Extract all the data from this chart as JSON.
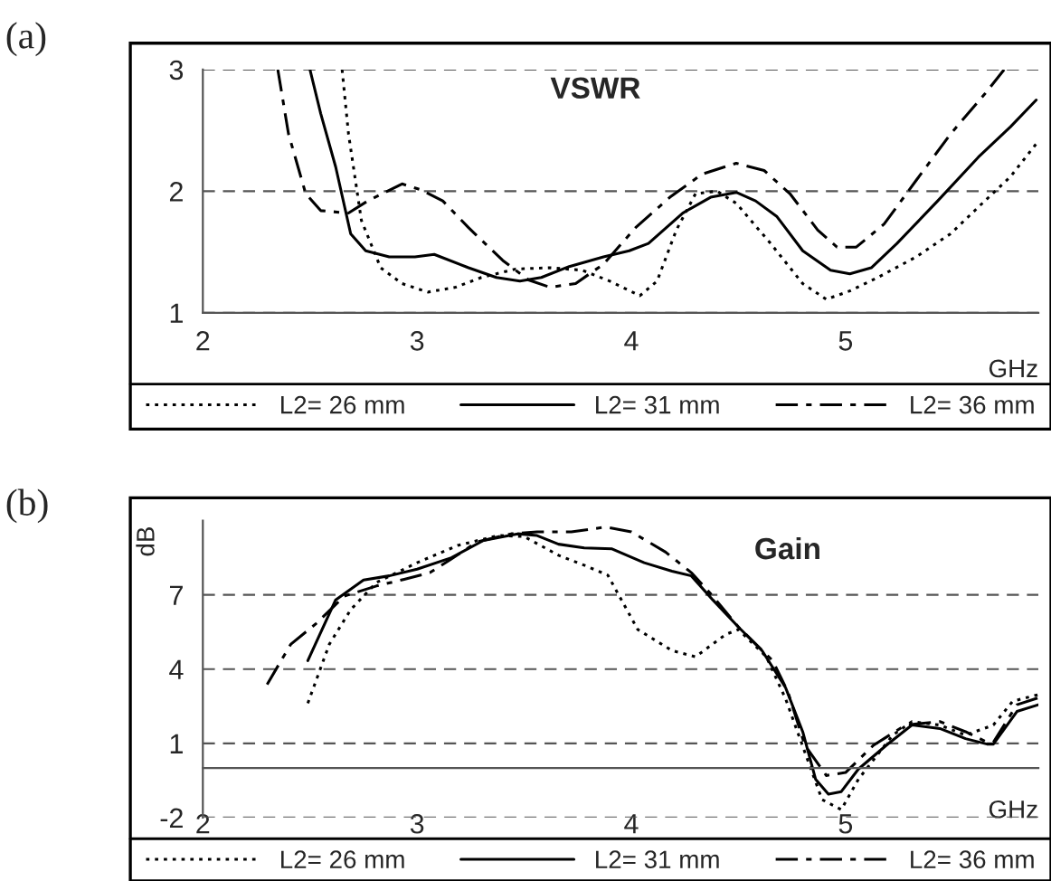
{
  "chart_data": [
    {
      "type": "line",
      "title": "VSWR",
      "xlabel": "GHz",
      "annotations": [
        "(a)"
      ],
      "xlim": [
        2,
        5.9
      ],
      "ylim": [
        1,
        3
      ],
      "xticks": [
        2,
        3,
        4,
        5
      ],
      "yticks": [
        1,
        2,
        3
      ],
      "grid": "y",
      "legend": "bottom",
      "series": [
        {
          "name": "L2= 26 mm",
          "color": "#000000",
          "line_style": "dotted",
          "x": [
            2.65,
            2.68,
            2.74,
            2.83,
            2.93,
            3.05,
            3.18,
            3.3,
            3.46,
            3.62,
            3.77,
            3.9,
            4.04,
            4.12,
            4.21,
            4.3,
            4.4,
            4.49,
            4.65,
            4.8,
            4.91,
            5.02,
            5.15,
            5.33,
            5.49,
            5.65,
            5.77,
            5.89
          ],
          "values": [
            3.0,
            2.47,
            1.76,
            1.37,
            1.24,
            1.17,
            1.21,
            1.29,
            1.36,
            1.37,
            1.35,
            1.26,
            1.14,
            1.26,
            1.68,
            1.98,
            2.0,
            1.9,
            1.57,
            1.24,
            1.11,
            1.18,
            1.29,
            1.46,
            1.65,
            1.92,
            2.12,
            2.39
          ]
        },
        {
          "name": "L2= 31 mm",
          "color": "#000000",
          "line_style": "solid",
          "x": [
            2.5,
            2.55,
            2.62,
            2.69,
            2.76,
            2.87,
            2.99,
            3.08,
            3.24,
            3.37,
            3.48,
            3.58,
            3.71,
            3.87,
            3.99,
            4.08,
            4.24,
            4.37,
            4.49,
            4.58,
            4.68,
            4.8,
            4.93,
            5.02,
            5.12,
            5.24,
            5.43,
            5.62,
            5.77,
            5.89
          ],
          "values": [
            3.0,
            2.64,
            2.2,
            1.65,
            1.51,
            1.46,
            1.46,
            1.48,
            1.37,
            1.29,
            1.26,
            1.29,
            1.38,
            1.46,
            1.51,
            1.57,
            1.82,
            1.95,
            1.99,
            1.92,
            1.79,
            1.51,
            1.35,
            1.32,
            1.37,
            1.57,
            1.92,
            2.28,
            2.53,
            2.75
          ]
        },
        {
          "name": "L2= 36 mm",
          "color": "#000000",
          "line_style": "dashdot",
          "x": [
            2.35,
            2.4,
            2.48,
            2.55,
            2.68,
            2.77,
            2.93,
            3.02,
            3.12,
            3.24,
            3.4,
            3.52,
            3.62,
            3.74,
            3.87,
            4.02,
            4.18,
            4.33,
            4.49,
            4.62,
            4.74,
            4.87,
            4.96,
            5.05,
            5.18,
            5.33,
            5.49,
            5.65,
            5.74
          ],
          "values": [
            3.0,
            2.47,
            1.98,
            1.84,
            1.82,
            1.92,
            2.06,
            2.01,
            1.92,
            1.7,
            1.43,
            1.27,
            1.21,
            1.24,
            1.4,
            1.7,
            1.95,
            2.14,
            2.23,
            2.17,
            1.98,
            1.68,
            1.54,
            1.54,
            1.73,
            2.09,
            2.47,
            2.8,
            3.0
          ]
        }
      ]
    },
    {
      "type": "line",
      "title": "Gain",
      "xlabel": "GHz",
      "ylabel": "dB",
      "annotations": [
        "(b)"
      ],
      "xlim": [
        2,
        5.9
      ],
      "ylim": [
        -2,
        10
      ],
      "xticks": [
        2,
        3,
        4,
        5
      ],
      "yticks": [
        -2,
        1,
        4,
        7
      ],
      "grid": "y",
      "legend": "bottom",
      "series": [
        {
          "name": "L2= 26 mm",
          "color": "#000000",
          "line_style": "dotted",
          "x": [
            2.49,
            2.59,
            2.69,
            2.81,
            3.0,
            3.19,
            3.38,
            3.5,
            3.66,
            3.78,
            3.89,
            4.03,
            4.19,
            4.3,
            4.44,
            4.5,
            4.63,
            4.72,
            4.81,
            4.89,
            4.98,
            5.06,
            5.22,
            5.31,
            5.44,
            5.56,
            5.69,
            5.78,
            5.9
          ],
          "values": [
            2.62,
            5.0,
            6.4,
            7.5,
            8.3,
            9.0,
            9.4,
            9.36,
            8.6,
            8.2,
            7.8,
            5.6,
            4.75,
            4.5,
            5.4,
            5.6,
            4.5,
            2.8,
            0.64,
            -1.27,
            -1.68,
            -0.45,
            1.33,
            1.88,
            1.74,
            1.33,
            1.74,
            2.7,
            2.97
          ]
        },
        {
          "name": "L2= 31 mm",
          "color": "#000000",
          "line_style": "solid",
          "x": [
            2.49,
            2.62,
            2.75,
            2.87,
            3.0,
            3.16,
            3.31,
            3.47,
            3.56,
            3.66,
            3.78,
            3.91,
            4.06,
            4.19,
            4.28,
            4.38,
            4.5,
            4.61,
            4.72,
            4.8,
            4.86,
            4.92,
            4.98,
            5.06,
            5.19,
            5.31,
            5.44,
            5.56,
            5.66,
            5.69,
            5.8,
            5.9
          ],
          "values": [
            4.34,
            6.8,
            7.6,
            7.77,
            8.04,
            8.5,
            9.2,
            9.47,
            9.4,
            9.05,
            8.9,
            8.86,
            8.3,
            7.96,
            7.77,
            6.8,
            5.7,
            4.75,
            3.25,
            1.47,
            -0.45,
            -1.05,
            -0.95,
            -0.04,
            0.92,
            1.74,
            1.6,
            1.19,
            0.97,
            0.97,
            2.29,
            2.56
          ]
        },
        {
          "name": "L2= 36 mm",
          "color": "#000000",
          "line_style": "dashdot",
          "x": [
            2.3,
            2.41,
            2.53,
            2.66,
            2.81,
            2.94,
            3.06,
            3.16,
            3.28,
            3.44,
            3.56,
            3.72,
            3.88,
            4.0,
            4.16,
            4.28,
            4.38,
            4.5,
            4.66,
            4.73,
            4.81,
            4.91,
            5.0,
            5.13,
            5.28,
            5.44,
            5.56,
            5.66,
            5.69,
            5.8,
            5.9
          ],
          "values": [
            3.38,
            5.0,
            5.85,
            6.95,
            7.36,
            7.63,
            7.9,
            8.45,
            9.14,
            9.47,
            9.55,
            9.55,
            9.74,
            9.55,
            8.73,
            7.9,
            6.95,
            5.7,
            4.34,
            3.1,
            0.92,
            -0.3,
            -0.18,
            0.92,
            1.74,
            1.88,
            1.47,
            1.05,
            1.05,
            2.56,
            2.84
          ]
        }
      ]
    }
  ]
}
